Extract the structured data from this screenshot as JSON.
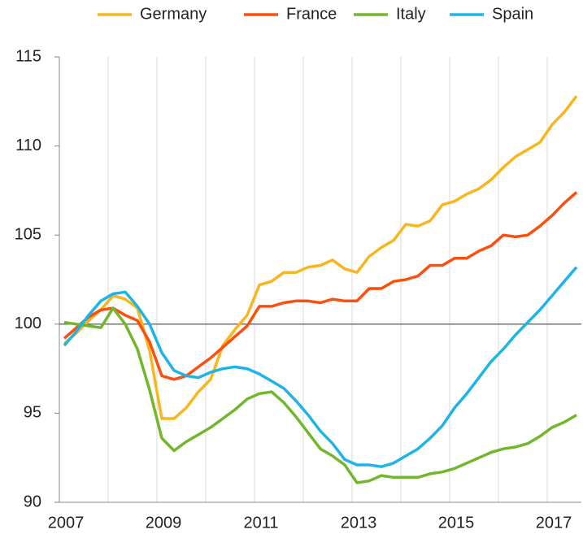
{
  "chart_data": {
    "type": "line",
    "x": [
      2007.1,
      2007.35,
      2007.6,
      2007.85,
      2008.1,
      2008.35,
      2008.6,
      2008.85,
      2009.1,
      2009.35,
      2009.6,
      2009.85,
      2010.1,
      2010.35,
      2010.6,
      2010.85,
      2011.1,
      2011.35,
      2011.6,
      2011.85,
      2012.1,
      2012.35,
      2012.6,
      2012.85,
      2013.1,
      2013.35,
      2013.6,
      2013.85,
      2014.1,
      2014.35,
      2014.6,
      2014.85,
      2015.1,
      2015.35,
      2015.6,
      2015.85,
      2016.1,
      2016.35,
      2016.6,
      2016.85,
      2017.1,
      2017.35,
      2017.6
    ],
    "series": [
      {
        "name": "Germany",
        "color": "#f9b51e",
        "values": [
          98.9,
          99.5,
          100.2,
          100.8,
          101.6,
          101.4,
          100.9,
          98.5,
          94.7,
          94.7,
          95.3,
          96.2,
          96.9,
          98.8,
          99.7,
          100.5,
          102.2,
          102.4,
          102.9,
          102.9,
          103.2,
          103.3,
          103.6,
          103.1,
          102.9,
          103.8,
          104.3,
          104.7,
          105.6,
          105.5,
          105.8,
          106.7,
          106.9,
          107.3,
          107.6,
          108.1,
          108.8,
          109.4,
          109.8,
          110.2,
          111.2,
          111.9,
          112.8
        ]
      },
      {
        "name": "France",
        "color": "#fc4e0c",
        "values": [
          99.2,
          99.8,
          100.4,
          100.8,
          100.9,
          100.5,
          100.2,
          99.0,
          97.1,
          96.9,
          97.1,
          97.6,
          98.1,
          98.7,
          99.3,
          99.9,
          101.0,
          101.0,
          101.2,
          101.3,
          101.3,
          101.2,
          101.4,
          101.3,
          101.3,
          102.0,
          102.0,
          102.4,
          102.5,
          102.7,
          103.3,
          103.3,
          103.7,
          103.7,
          104.1,
          104.4,
          105.0,
          104.9,
          105.0,
          105.5,
          106.1,
          106.8,
          107.4
        ]
      },
      {
        "name": "Italy",
        "color": "#72b72b",
        "values": [
          100.1,
          100.0,
          99.9,
          99.8,
          100.9,
          100.0,
          98.6,
          96.3,
          93.6,
          92.9,
          93.4,
          93.8,
          94.2,
          94.7,
          95.2,
          95.8,
          96.1,
          96.2,
          95.6,
          94.8,
          93.9,
          93.0,
          92.6,
          92.1,
          91.1,
          91.2,
          91.5,
          91.4,
          91.4,
          91.4,
          91.6,
          91.7,
          91.9,
          92.2,
          92.5,
          92.8,
          93.0,
          93.1,
          93.3,
          93.7,
          94.2,
          94.5,
          94.9
        ]
      },
      {
        "name": "Spain",
        "color": "#1eb4e8",
        "values": [
          98.8,
          99.6,
          100.5,
          101.3,
          101.7,
          101.8,
          101.0,
          100.0,
          98.4,
          97.4,
          97.1,
          97.0,
          97.3,
          97.5,
          97.6,
          97.5,
          97.2,
          96.8,
          96.4,
          95.7,
          94.9,
          94.0,
          93.3,
          92.4,
          92.1,
          92.1,
          92.0,
          92.2,
          92.6,
          93.0,
          93.6,
          94.3,
          95.3,
          96.1,
          97.0,
          97.9,
          98.6,
          99.4,
          100.1,
          100.8,
          101.6,
          102.4,
          103.2
        ]
      }
    ],
    "xlim": [
      2007,
      2017.7
    ],
    "xticks": [
      2007,
      2009,
      2011,
      2013,
      2015,
      2017
    ],
    "xminor": [
      2008,
      2010,
      2012,
      2014,
      2016
    ],
    "ylim": [
      90,
      115
    ],
    "yticks": [
      90,
      95,
      100,
      105,
      110,
      115
    ],
    "baseline": 100,
    "grid": true,
    "legend": "top"
  }
}
